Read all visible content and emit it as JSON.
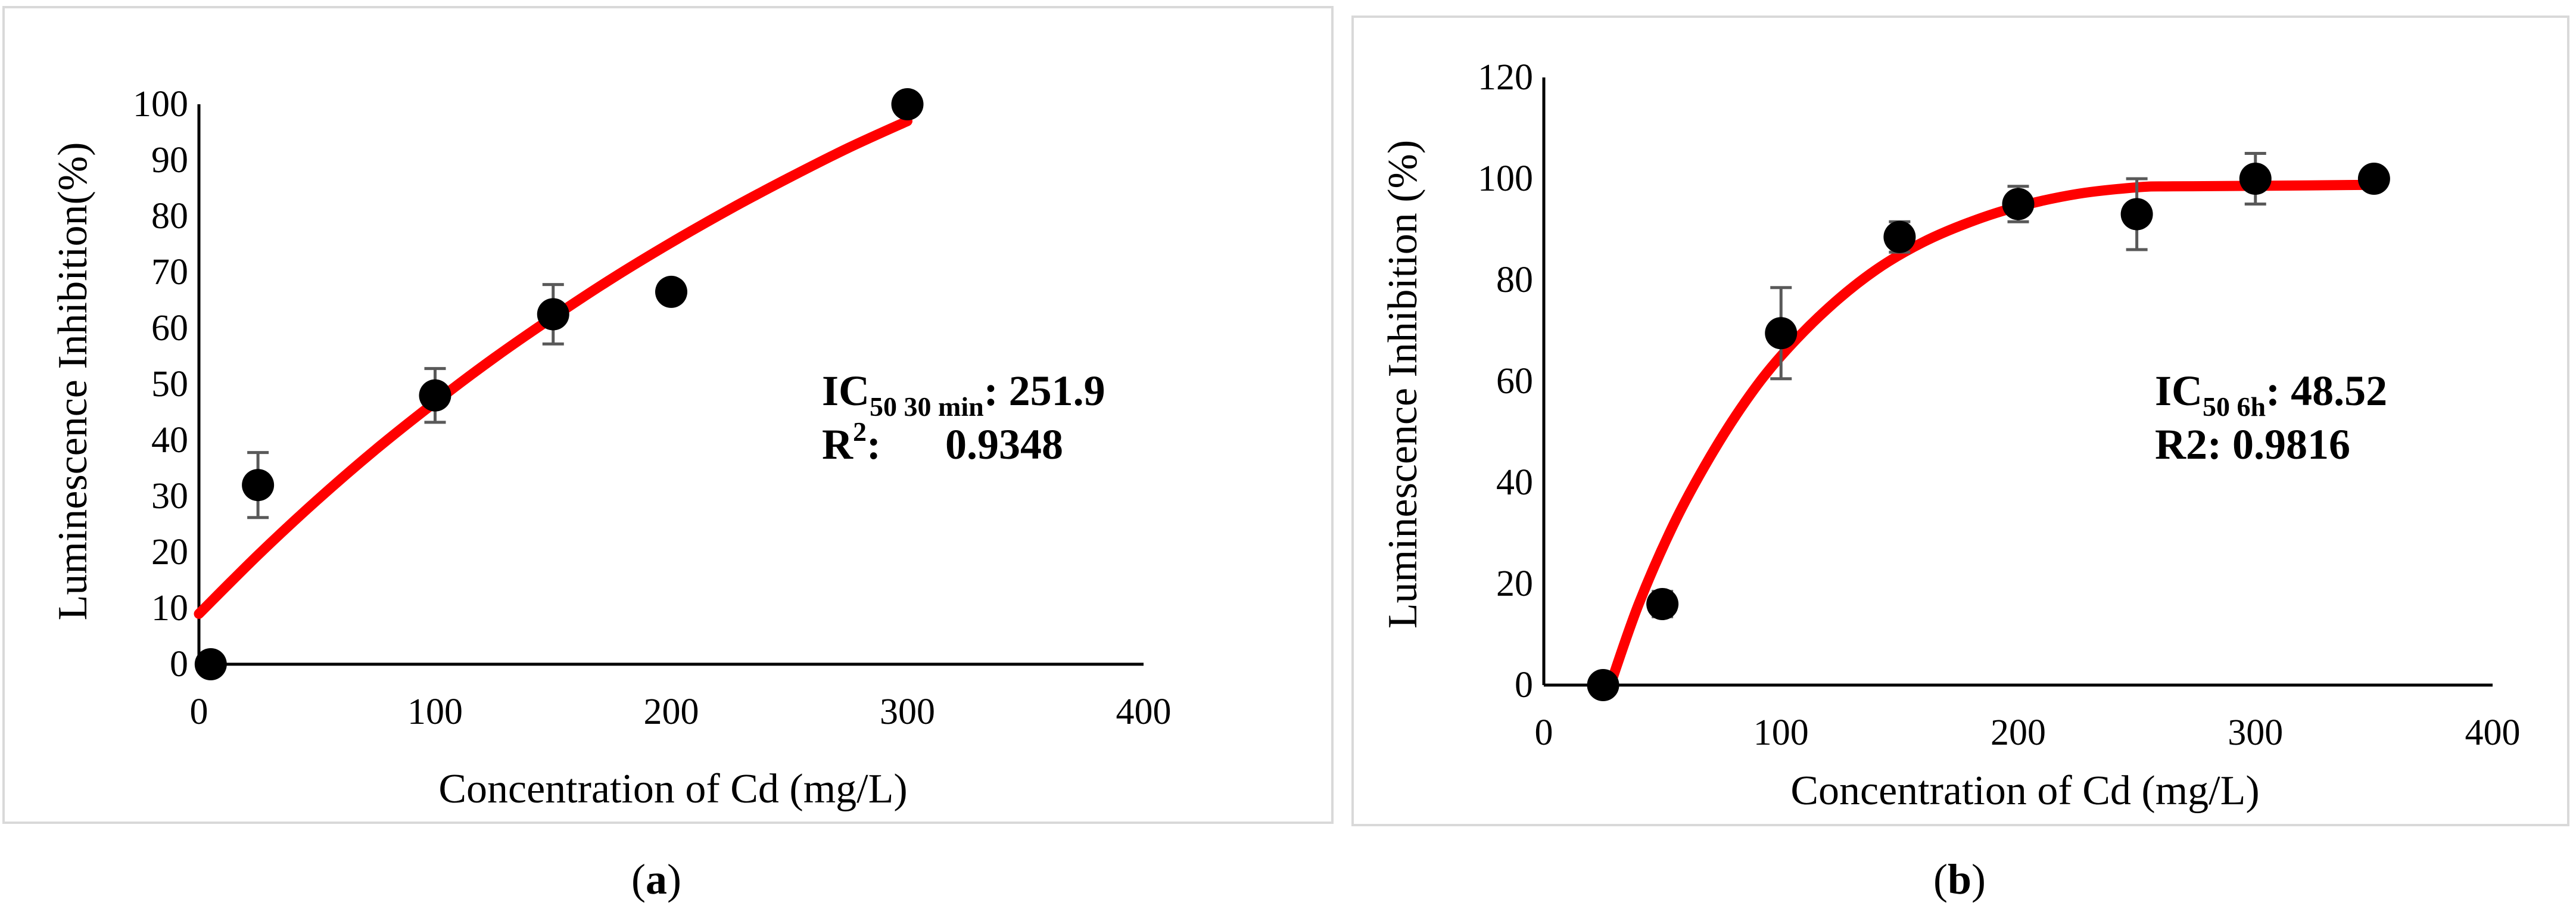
{
  "chart_data": [
    {
      "type": "scatter",
      "panel_label": "a",
      "xlabel": "Concentration of Cd (mg/L)",
      "ylabel": "Luminescence Inhibition(%)",
      "xlim": [
        0,
        400
      ],
      "ylim": [
        0,
        100
      ],
      "x_ticks": [
        0,
        100,
        200,
        300,
        400
      ],
      "y_ticks": [
        0,
        10,
        20,
        30,
        40,
        50,
        60,
        70,
        80,
        90,
        100
      ],
      "grid": false,
      "series": [
        {
          "name": "Observed",
          "x": [
            5,
            25,
            100,
            150,
            200,
            300
          ],
          "y": [
            0,
            32,
            48,
            62.5,
            66.5,
            100
          ],
          "error": [
            0,
            5.8,
            4.8,
            5.3,
            0,
            0
          ]
        },
        {
          "name": "Fit",
          "x": [
            0,
            25,
            50,
            75,
            100,
            125,
            150,
            175,
            200,
            225,
            250,
            275,
            300
          ],
          "y": [
            9,
            19.5,
            29.3,
            38.4,
            46.8,
            54.7,
            62,
            68.9,
            75.3,
            81.3,
            86.9,
            92.2,
            97
          ]
        }
      ],
      "annotation": {
        "ic_main": "IC",
        "ic_sub": "50 30 min",
        "ic_value": ": 251.9",
        "r_main": "R",
        "r_sup": "2",
        "r_value": ":      0.9348"
      }
    },
    {
      "type": "scatter",
      "panel_label": "b",
      "xlabel": "Concentration of Cd (mg/L)",
      "ylabel": "Luminescence Inhibition (%)",
      "xlim": [
        0,
        400
      ],
      "ylim": [
        0,
        120
      ],
      "x_ticks": [
        0,
        100,
        200,
        300,
        400
      ],
      "y_ticks": [
        0,
        20,
        40,
        60,
        80,
        100,
        120
      ],
      "grid": false,
      "series": [
        {
          "name": "Observed",
          "x": [
            25,
            50,
            100,
            150,
            200,
            250,
            300,
            350
          ],
          "y": [
            0,
            16,
            69.5,
            88.5,
            95,
            93,
            100,
            100
          ],
          "error": [
            0,
            2.5,
            9,
            3,
            3.5,
            7,
            5,
            0
          ]
        },
        {
          "name": "Fit",
          "x": [
            28,
            40,
            55,
            70,
            85,
            100,
            120,
            140,
            160,
            180,
            200,
            225,
            250,
            265,
            300,
            350
          ],
          "y": [
            0,
            16,
            32,
            45,
            56,
            65,
            74.5,
            82,
            87.5,
            91.5,
            94.5,
            97,
            98.3,
            98.5,
            98.6,
            98.8
          ]
        }
      ],
      "annotation": {
        "ic_main": "IC",
        "ic_sub": "50 6h",
        "ic_value": ": 48.52",
        "r_main": "R2: 0.9816"
      }
    }
  ],
  "captions": {
    "a": {
      "open": "(",
      "letter": "a",
      "close": ")"
    },
    "b": {
      "open": "(",
      "letter": "b",
      "close": ")"
    }
  }
}
